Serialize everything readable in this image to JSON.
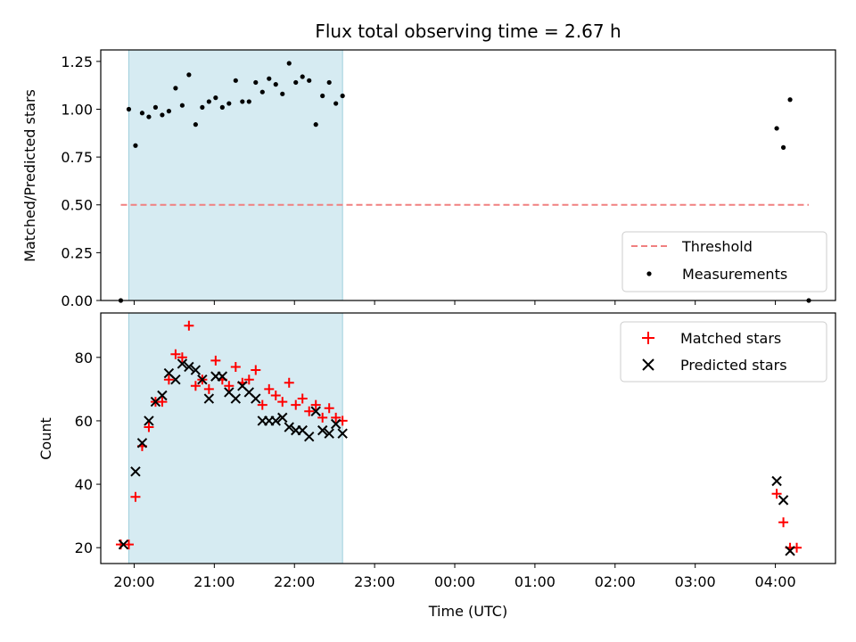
{
  "chart_data": [
    {
      "type": "scatter",
      "title": "Flux total observing time = 2.67 h",
      "ylabel": "Matched/Predicted stars",
      "xlabel": "",
      "xlim": [
        "19:35",
        "04:45"
      ],
      "ylim": [
        0,
        1.31
      ],
      "yticks": [
        "0.00",
        "0.25",
        "0.50",
        "0.75",
        "1.00",
        "1.25"
      ],
      "ytick_values": [
        0,
        0.25,
        0.5,
        0.75,
        1.0,
        1.25
      ],
      "shaded_span": [
        "19:56",
        "22:36"
      ],
      "legend_position": "lower right",
      "series": [
        {
          "name": "Threshold",
          "kind": "dashed-line",
          "color": "#f08080",
          "x": [
            "19:50",
            "04:25"
          ],
          "y": [
            0.5,
            0.5
          ]
        },
        {
          "name": "Measurements",
          "kind": "dots",
          "color": "#000000",
          "x": [
            "19:50",
            "19:56",
            "20:01",
            "20:06",
            "20:11",
            "20:16",
            "20:21",
            "20:26",
            "20:31",
            "20:36",
            "20:41",
            "20:46",
            "20:51",
            "20:56",
            "21:01",
            "21:06",
            "21:11",
            "21:16",
            "21:21",
            "21:26",
            "21:31",
            "21:36",
            "21:41",
            "21:46",
            "21:51",
            "21:56",
            "22:01",
            "22:06",
            "22:11",
            "22:16",
            "22:21",
            "22:26",
            "22:31",
            "22:36",
            "04:01",
            "04:06",
            "04:11",
            "04:25"
          ],
          "y": [
            0.0,
            1.0,
            0.81,
            0.98,
            0.96,
            1.01,
            0.97,
            0.99,
            1.11,
            1.02,
            1.18,
            0.92,
            1.01,
            1.04,
            1.06,
            1.01,
            1.03,
            1.15,
            1.04,
            1.04,
            1.14,
            1.09,
            1.16,
            1.13,
            1.08,
            1.24,
            1.14,
            1.17,
            1.15,
            0.92,
            1.07,
            1.14,
            1.03,
            1.07,
            0.9,
            0.8,
            1.05,
            0.0
          ]
        }
      ]
    },
    {
      "type": "scatter",
      "title": "",
      "ylabel": "Count",
      "xlabel": "Time (UTC)",
      "xlim": [
        "19:35",
        "04:45"
      ],
      "ylim": [
        15,
        94
      ],
      "yticks": [
        "20",
        "40",
        "60",
        "80"
      ],
      "ytick_values": [
        20,
        40,
        60,
        80
      ],
      "xticks": [
        "20:00",
        "21:00",
        "22:00",
        "23:00",
        "00:00",
        "01:00",
        "02:00",
        "03:00",
        "04:00"
      ],
      "shaded_span": [
        "19:56",
        "22:36"
      ],
      "legend_position": "upper right",
      "series": [
        {
          "name": "Matched stars",
          "kind": "plus",
          "color": "#ff0000",
          "x": [
            "19:50",
            "19:56",
            "20:01",
            "20:06",
            "20:11",
            "20:16",
            "20:21",
            "20:26",
            "20:31",
            "20:36",
            "20:41",
            "20:46",
            "20:51",
            "20:56",
            "21:01",
            "21:06",
            "21:11",
            "21:16",
            "21:21",
            "21:26",
            "21:31",
            "21:36",
            "21:41",
            "21:46",
            "21:51",
            "21:56",
            "22:01",
            "22:06",
            "22:11",
            "22:16",
            "22:21",
            "22:26",
            "22:31",
            "22:36",
            "04:01",
            "04:06",
            "04:11",
            "04:16"
          ],
          "y": [
            21,
            21,
            36,
            52,
            58,
            66,
            66,
            73,
            81,
            80,
            90,
            71,
            73,
            70,
            79,
            73,
            71,
            77,
            72,
            73,
            76,
            65,
            70,
            68,
            66,
            72,
            65,
            67,
            63,
            65,
            61,
            64,
            61,
            60,
            37,
            28,
            20,
            20
          ]
        },
        {
          "name": "Predicted stars",
          "kind": "x",
          "color": "#000000",
          "x": [
            "19:52",
            "20:01",
            "20:06",
            "20:11",
            "20:16",
            "20:21",
            "20:26",
            "20:31",
            "20:36",
            "20:41",
            "20:46",
            "20:51",
            "20:56",
            "21:01",
            "21:06",
            "21:11",
            "21:16",
            "21:21",
            "21:26",
            "21:31",
            "21:36",
            "21:41",
            "21:46",
            "21:51",
            "21:56",
            "22:01",
            "22:06",
            "22:11",
            "22:16",
            "22:21",
            "22:26",
            "22:31",
            "22:36",
            "04:01",
            "04:06",
            "04:11"
          ],
          "y": [
            21,
            44,
            53,
            60,
            66,
            68,
            75,
            73,
            78,
            77,
            76,
            73,
            67,
            74,
            74,
            69,
            67,
            71,
            69,
            67,
            60,
            60,
            60,
            61,
            58,
            57,
            57,
            55,
            63,
            57,
            56,
            59,
            56,
            41,
            35,
            19
          ]
        }
      ]
    }
  ]
}
